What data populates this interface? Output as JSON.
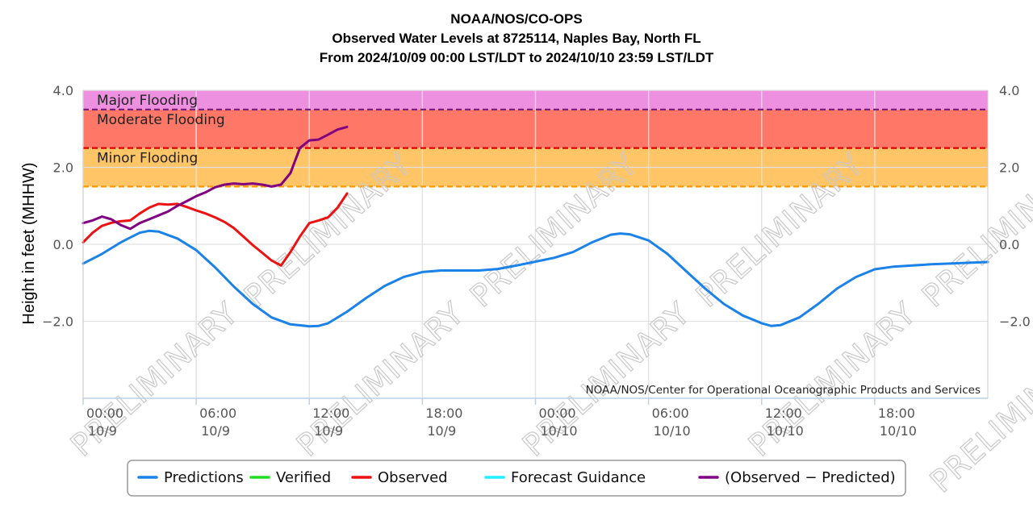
{
  "chart_data": {
    "type": "line",
    "title": "NOAA/NOS/CO-OPS",
    "subtitle": "Observed Water Levels at 8725114, Naples Bay, North FL",
    "subtitle2": "From 2024/10/09 00:00 LST/LDT to 2024/10/10 23:59 LST/LDT",
    "ylabel": "Height in feet (MHHW)",
    "xlabel": "",
    "xlim": [
      0,
      48
    ],
    "ylim": [
      -4.0,
      4.0
    ],
    "x_unit": "hours from 2024/10/09 00:00",
    "y_ticks": [
      {
        "value": 4.0,
        "label": "4.0"
      },
      {
        "value": 2.0,
        "label": "2.0"
      },
      {
        "value": 0.0,
        "label": "0.0"
      },
      {
        "value": -2.0,
        "label": "−2.0"
      }
    ],
    "x_ticks": [
      {
        "x": 0,
        "time": "00:00",
        "date": "10/9"
      },
      {
        "x": 6,
        "time": "06:00",
        "date": "10/9"
      },
      {
        "x": 12,
        "time": "12:00",
        "date": "10/9"
      },
      {
        "x": 18,
        "time": "18:00",
        "date": "10/9"
      },
      {
        "x": 24,
        "time": "00:00",
        "date": "10/10"
      },
      {
        "x": 30,
        "time": "06:00",
        "date": "10/10"
      },
      {
        "x": 36,
        "time": "12:00",
        "date": "10/10"
      },
      {
        "x": 42,
        "time": "18:00",
        "date": "10/10"
      }
    ],
    "grid": true,
    "flood_bands": [
      {
        "name": "Major Flooding",
        "from": 3.5,
        "to": 4.0,
        "color": "#ee90e0",
        "line_color": "#7a1f7a"
      },
      {
        "name": "Moderate Flooding",
        "from": 2.5,
        "to": 3.5,
        "color": "#ff7766",
        "line_color": "#dd0000"
      },
      {
        "name": "Minor Flooding",
        "from": 1.5,
        "to": 2.5,
        "color": "#ffc566",
        "line_color": "#ff9900"
      }
    ],
    "credit": "NOAA/NOS/Center for Operational Oceanographic Products and Services",
    "watermark": "PRELIMINARY",
    "legend_position": "bottom-center",
    "series": [
      {
        "name": "Predictions",
        "color": "#1a82e8",
        "x": [
          0,
          1,
          2,
          3,
          3.5,
          4,
          5,
          6,
          7,
          8,
          9,
          10,
          11,
          12,
          12.5,
          13,
          14,
          15,
          16,
          17,
          18,
          19,
          20,
          21,
          22,
          23,
          24,
          25,
          26,
          27,
          28,
          28.5,
          29,
          30,
          31,
          32,
          33,
          34,
          35,
          36,
          36.5,
          37,
          38,
          39,
          40,
          41,
          42,
          43,
          44,
          45,
          46,
          47,
          48
        ],
        "values": [
          -0.5,
          -0.25,
          0.05,
          0.3,
          0.35,
          0.33,
          0.15,
          -0.15,
          -0.6,
          -1.1,
          -1.55,
          -1.9,
          -2.08,
          -2.13,
          -2.12,
          -2.05,
          -1.75,
          -1.4,
          -1.08,
          -0.85,
          -0.72,
          -0.68,
          -0.68,
          -0.68,
          -0.64,
          -0.55,
          -0.45,
          -0.35,
          -0.2,
          0.05,
          0.25,
          0.28,
          0.26,
          0.1,
          -0.25,
          -0.7,
          -1.15,
          -1.55,
          -1.85,
          -2.05,
          -2.12,
          -2.1,
          -1.9,
          -1.55,
          -1.15,
          -0.85,
          -0.65,
          -0.58,
          -0.55,
          -0.52,
          -0.5,
          -0.48,
          -0.46
        ]
      },
      {
        "name": "Verified",
        "color": "#22dd22",
        "x": [],
        "values": []
      },
      {
        "name": "Observed",
        "color": "#ee1111",
        "x": [
          0,
          0.5,
          1,
          1.5,
          2,
          2.5,
          3,
          3.5,
          4,
          4.5,
          5,
          5.5,
          6,
          6.5,
          7,
          7.5,
          8,
          8.5,
          9,
          9.5,
          10,
          10.5,
          11,
          11.5,
          12,
          12.5,
          13,
          13.5,
          14
        ],
        "values": [
          0.05,
          0.3,
          0.48,
          0.56,
          0.6,
          0.62,
          0.8,
          0.95,
          1.05,
          1.03,
          1.05,
          0.97,
          0.88,
          0.8,
          0.7,
          0.58,
          0.42,
          0.2,
          -0.02,
          -0.22,
          -0.42,
          -0.55,
          -0.2,
          0.2,
          0.55,
          0.62,
          0.7,
          0.95,
          1.32
        ]
      },
      {
        "name": "Forecast Guidance",
        "color": "#22eeff",
        "x": [],
        "values": []
      },
      {
        "name": "(Observed − Predicted)",
        "color": "#800080",
        "x": [
          0,
          0.5,
          1,
          1.5,
          2,
          2.5,
          3,
          3.5,
          4,
          4.5,
          5,
          5.5,
          6,
          6.5,
          7,
          7.5,
          8,
          8.5,
          9,
          9.5,
          10,
          10.5,
          11,
          11.5,
          12,
          12.5,
          13,
          13.5,
          14
        ],
        "values": [
          0.55,
          0.62,
          0.72,
          0.65,
          0.5,
          0.4,
          0.55,
          0.65,
          0.75,
          0.85,
          1.0,
          1.12,
          1.25,
          1.35,
          1.48,
          1.55,
          1.58,
          1.56,
          1.58,
          1.55,
          1.5,
          1.55,
          1.85,
          2.5,
          2.7,
          2.72,
          2.85,
          2.98,
          3.05
        ]
      }
    ]
  }
}
